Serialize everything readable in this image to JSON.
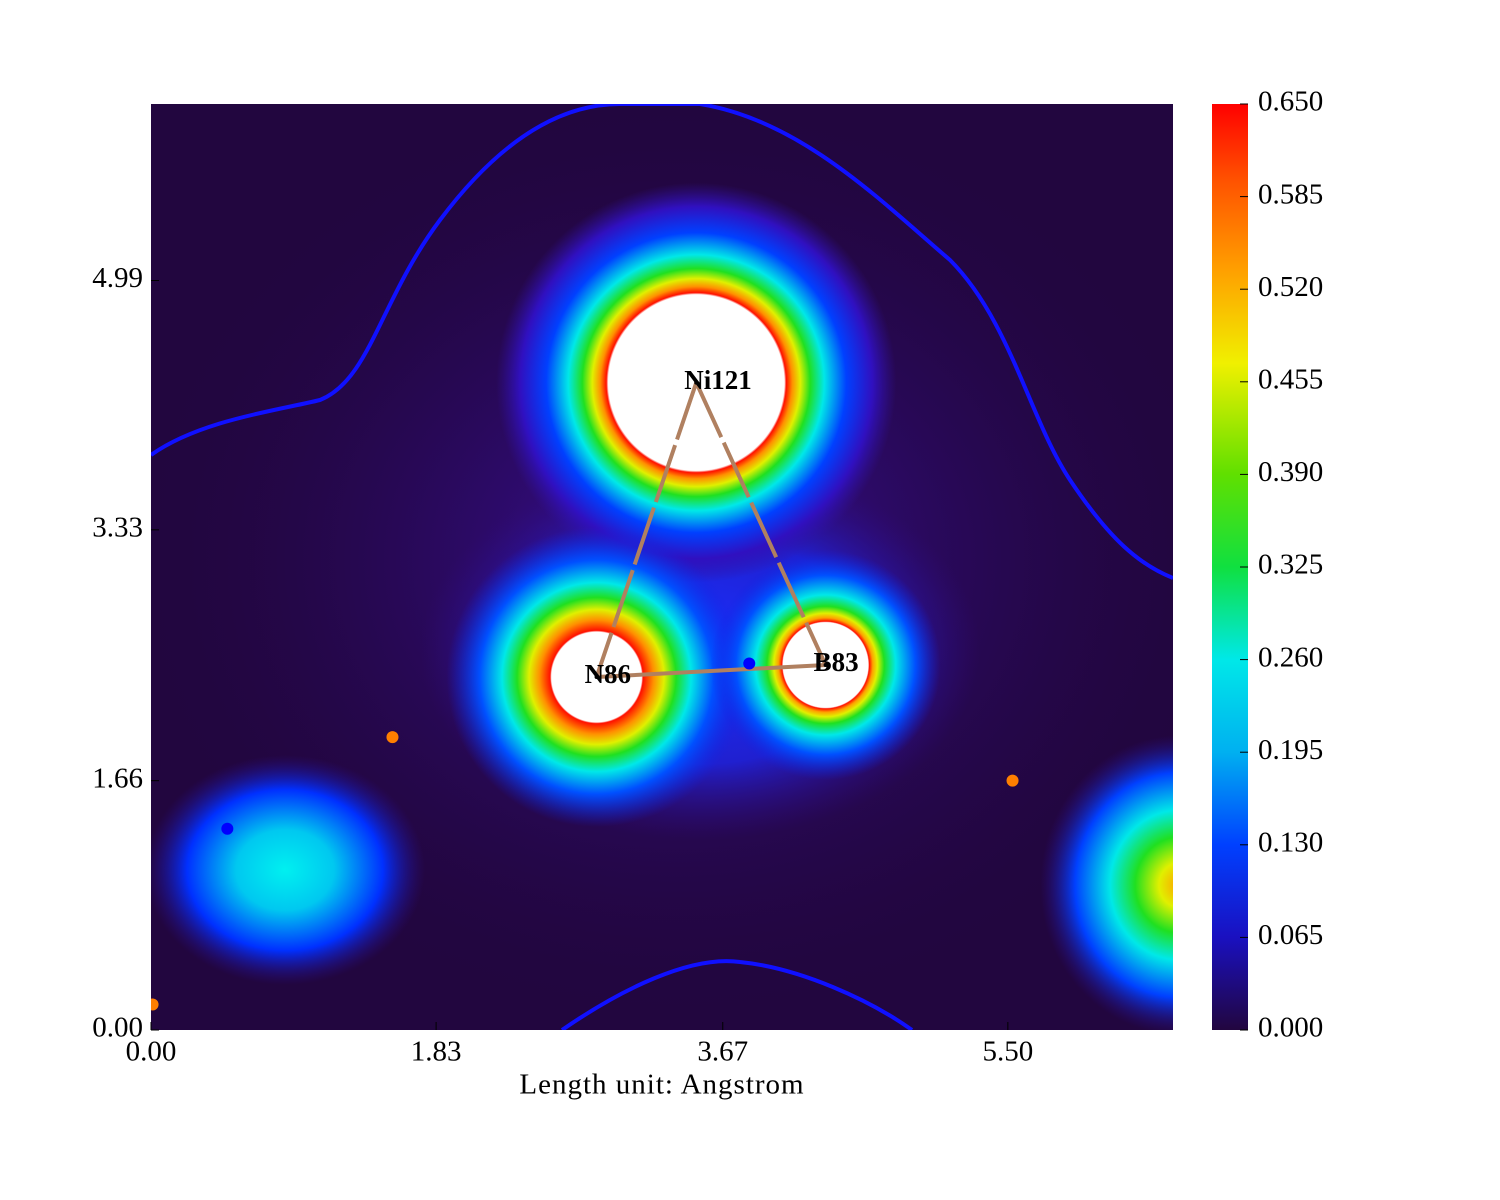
{
  "chart_data": {
    "type": "contour",
    "xlabel": "Length unit: Angstrom",
    "xlim": [
      0,
      6.56
    ],
    "ylim": [
      0,
      6.165
    ],
    "xticks": [
      {
        "value": 0,
        "label": "0.00"
      },
      1.83,
      3.67,
      {
        "value": 5.5,
        "label": "5.50"
      }
    ],
    "yticks": [
      {
        "value": 0,
        "label": "0.00"
      },
      1.66,
      3.33,
      4.99
    ],
    "colorbar": {
      "lim": [
        0,
        0.65
      ],
      "ticks": [
        {
          "value": 0,
          "label": "0.000"
        },
        {
          "value": 0.065,
          "label": "0.065"
        },
        {
          "value": 0.13,
          "label": "0.130"
        },
        {
          "value": 0.195,
          "label": "0.195"
        },
        {
          "value": 0.26,
          "label": "0.260"
        },
        {
          "value": 0.325,
          "label": "0.325"
        },
        {
          "value": 0.39,
          "label": "0.390"
        },
        {
          "value": 0.455,
          "label": "0.455"
        },
        {
          "value": 0.52,
          "label": "0.520"
        },
        {
          "value": 0.585,
          "label": "0.585"
        },
        {
          "value": 0.65,
          "label": "0.650"
        }
      ]
    },
    "atoms": {
      "labels": [
        "Ni121",
        "N86",
        "B83"
      ],
      "x": [
        3.5,
        2.86,
        4.33
      ],
      "y": [
        4.31,
        2.35,
        2.43
      ]
    },
    "critical_points": [
      {
        "color": "#0000ff",
        "x": [
          3.84,
          0.49
        ],
        "y": [
          2.44,
          1.34
        ]
      },
      {
        "color": "#ff7f00",
        "x": [
          1.55,
          5.53,
          0.01
        ],
        "y": [
          1.95,
          1.66,
          0.17
        ]
      }
    ]
  }
}
